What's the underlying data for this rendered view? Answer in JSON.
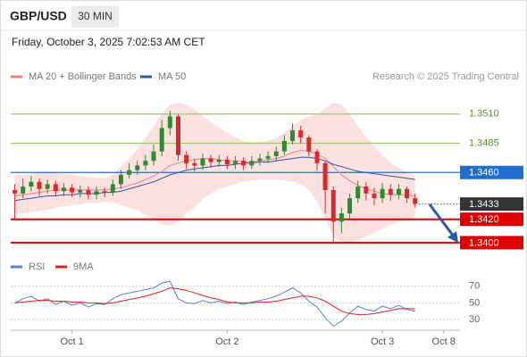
{
  "header": {
    "symbol": "GBP/USD",
    "interval": "30 MIN",
    "timestamp": "Friday, October 3, 2025 7:02:53 AM CET",
    "credit": "Research © 2025 Trading Central"
  },
  "chart_data": [
    {
      "type": "candlestick",
      "up_color": "#2e8b2e",
      "down_color": "#d62b2b",
      "xlim": [
        -0.5,
        54.5
      ],
      "ylim": [
        1.339,
        1.3535
      ],
      "open": [
        1.3445,
        1.3442,
        1.3448,
        1.3452,
        1.3446,
        1.345,
        1.3444,
        1.3447,
        1.3443,
        1.3445,
        1.3441,
        1.3444,
        1.3443,
        1.345,
        1.3458,
        1.3462,
        1.3466,
        1.347,
        1.3478,
        1.3498,
        1.3508,
        1.3475,
        1.3468,
        1.3466,
        1.3472,
        1.3469,
        1.3471,
        1.3467,
        1.347,
        1.3466,
        1.347,
        1.3472,
        1.3474,
        1.3478,
        1.3487,
        1.3496,
        1.349,
        1.3478,
        1.3468,
        1.3445,
        1.3418,
        1.3425,
        1.3438,
        1.3448,
        1.3442,
        1.3438,
        1.3446,
        1.3441,
        1.3446,
        1.3438
      ],
      "high": [
        1.345,
        1.3455,
        1.3457,
        1.3455,
        1.3454,
        1.3453,
        1.3451,
        1.345,
        1.3449,
        1.3448,
        1.3448,
        1.3447,
        1.3454,
        1.3462,
        1.3468,
        1.347,
        1.3475,
        1.3484,
        1.3505,
        1.3513,
        1.351,
        1.3478,
        1.3472,
        1.3476,
        1.3475,
        1.3475,
        1.3474,
        1.3474,
        1.3473,
        1.3474,
        1.3476,
        1.3478,
        1.3482,
        1.3492,
        1.3502,
        1.35,
        1.3492,
        1.348,
        1.347,
        1.3448,
        1.343,
        1.3442,
        1.3453,
        1.3452,
        1.3447,
        1.3451,
        1.345,
        1.345,
        1.3448,
        1.3442
      ],
      "low": [
        1.342,
        1.3438,
        1.3444,
        1.344,
        1.3442,
        1.344,
        1.344,
        1.3439,
        1.3439,
        1.3437,
        1.3437,
        1.3439,
        1.344,
        1.3446,
        1.3455,
        1.3458,
        1.3462,
        1.3466,
        1.3474,
        1.3492,
        1.347,
        1.3463,
        1.3461,
        1.3462,
        1.3464,
        1.3465,
        1.3463,
        1.3463,
        1.3462,
        1.3463,
        1.3466,
        1.3468,
        1.347,
        1.3475,
        1.3484,
        1.3485,
        1.3474,
        1.3462,
        1.3425,
        1.34,
        1.3408,
        1.342,
        1.3434,
        1.3436,
        1.3432,
        1.3434,
        1.3436,
        1.3437,
        1.3434,
        1.343
      ],
      "close": [
        1.3442,
        1.3448,
        1.3452,
        1.3446,
        1.345,
        1.3444,
        1.3447,
        1.3443,
        1.3445,
        1.3441,
        1.3444,
        1.3443,
        1.345,
        1.3458,
        1.3462,
        1.3466,
        1.347,
        1.3478,
        1.3498,
        1.3508,
        1.3475,
        1.3468,
        1.3466,
        1.3472,
        1.3469,
        1.3471,
        1.3467,
        1.347,
        1.3466,
        1.347,
        1.3472,
        1.3474,
        1.3478,
        1.3487,
        1.3496,
        1.349,
        1.3478,
        1.3468,
        1.3445,
        1.3418,
        1.3425,
        1.3438,
        1.3448,
        1.3442,
        1.3438,
        1.3446,
        1.3441,
        1.3446,
        1.3438,
        1.3433
      ],
      "indicators": [
        {
          "name": "MA 20 + Bollinger Bands",
          "color": "#f08080",
          "band_color": "#fde0e0",
          "values": [
            1.344,
            1.3441,
            1.3442,
            1.3443,
            1.3444,
            1.3445,
            1.3445,
            1.3445,
            1.3445,
            1.3445,
            1.3445,
            1.3445,
            1.3446,
            1.3447,
            1.3449,
            1.3451,
            1.3454,
            1.3457,
            1.3461,
            1.3466,
            1.3468,
            1.347,
            1.3471,
            1.3472,
            1.3472,
            1.3471,
            1.347,
            1.347,
            1.3469,
            1.3469,
            1.347,
            1.3471,
            1.3472,
            1.3474,
            1.3477,
            1.3479,
            1.3478,
            1.3476,
            1.3472,
            1.3465,
            1.3458,
            1.3453,
            1.3449,
            1.3446,
            1.3444,
            1.3442,
            1.3441,
            1.3441,
            1.3441,
            1.344
          ],
          "upper": [
            1.3458,
            1.3458,
            1.3459,
            1.346,
            1.346,
            1.346,
            1.3459,
            1.3458,
            1.3457,
            1.3456,
            1.3456,
            1.3455,
            1.3458,
            1.3465,
            1.3472,
            1.348,
            1.349,
            1.35,
            1.351,
            1.3518,
            1.352,
            1.3518,
            1.3514,
            1.3508,
            1.3503,
            1.3498,
            1.3494,
            1.349,
            1.3487,
            1.3486,
            1.3486,
            1.3487,
            1.3489,
            1.3494,
            1.35,
            1.3505,
            1.3508,
            1.351,
            1.3515,
            1.352,
            1.3518,
            1.351,
            1.35,
            1.349,
            1.3482,
            1.3475,
            1.3468,
            1.3464,
            1.346,
            1.3458
          ],
          "lower": [
            1.3425,
            1.3425,
            1.3426,
            1.3427,
            1.3428,
            1.343,
            1.3431,
            1.3432,
            1.3433,
            1.3434,
            1.3434,
            1.3435,
            1.3434,
            1.3432,
            1.343,
            1.3428,
            1.3424,
            1.342,
            1.3415,
            1.3415,
            1.3418,
            1.3425,
            1.343,
            1.3437,
            1.3442,
            1.3446,
            1.3448,
            1.345,
            1.3452,
            1.3453,
            1.3454,
            1.3454,
            1.3454,
            1.3453,
            1.3452,
            1.345,
            1.3445,
            1.3435,
            1.342,
            1.3405,
            1.34,
            1.34,
            1.3402,
            1.3405,
            1.3408,
            1.3412,
            1.3415,
            1.3418,
            1.342,
            1.3422
          ]
        },
        {
          "name": "MA 50",
          "color": "#2c5aa0",
          "values": [
            1.3436,
            1.3437,
            1.3438,
            1.3439,
            1.344,
            1.344,
            1.3441,
            1.3441,
            1.3442,
            1.3442,
            1.3442,
            1.3443,
            1.3443,
            1.3444,
            1.3446,
            1.3448,
            1.345,
            1.3452,
            1.3455,
            1.3458,
            1.346,
            1.3462,
            1.3463,
            1.3464,
            1.3465,
            1.3466,
            1.3466,
            1.3467,
            1.3468,
            1.3468,
            1.3469,
            1.3469,
            1.347,
            1.3471,
            1.3472,
            1.3473,
            1.3473,
            1.3472,
            1.347,
            1.3467,
            1.3465,
            1.3463,
            1.3461,
            1.346,
            1.3459,
            1.3458,
            1.3457,
            1.3456,
            1.3455,
            1.3454
          ]
        }
      ],
      "levels": [
        {
          "value": 1.351,
          "label": "1.3510",
          "color": "#9acd6a",
          "style": "text"
        },
        {
          "value": 1.3485,
          "label": "1.3485",
          "color": "#9acd6a",
          "style": "text"
        },
        {
          "value": 1.346,
          "label": "1.3460",
          "color": "#1f6fd1",
          "style": "box"
        },
        {
          "value": 1.342,
          "label": "1.3420",
          "color": "#e00000",
          "style": "box"
        },
        {
          "value": 1.34,
          "label": "1.3400",
          "color": "#e00000",
          "style": "box"
        }
      ],
      "last_price": {
        "value": 1.3433,
        "label": "1.3433",
        "color": "#333333"
      }
    },
    {
      "type": "line",
      "xlim": [
        -0.5,
        54.5
      ],
      "ylim": [
        17,
        87
      ],
      "yticks": [
        30,
        50,
        70
      ],
      "grid": true,
      "xticks": [
        {
          "value": 7,
          "label": "Oct 1"
        },
        {
          "value": 26,
          "label": "Oct 2"
        },
        {
          "value": 45,
          "label": "Oct 3"
        },
        {
          "value": 52.5,
          "label": "Oct 8"
        }
      ],
      "series": [
        {
          "name": "RSI",
          "color": "#5b7fd6",
          "values": [
            50,
            55,
            58,
            52,
            55,
            48,
            52,
            47,
            50,
            45,
            49,
            48,
            55,
            60,
            62,
            64,
            66,
            68,
            74,
            76,
            55,
            50,
            49,
            53,
            50,
            52,
            49,
            51,
            48,
            51,
            53,
            55,
            58,
            63,
            68,
            62,
            52,
            45,
            32,
            22,
            28,
            38,
            46,
            42,
            40,
            46,
            43,
            47,
            42,
            40
          ]
        },
        {
          "name": "9MA",
          "color": "#e02020",
          "values": [
            50,
            51,
            52,
            53,
            53,
            52,
            52,
            51,
            51,
            50,
            50,
            49,
            50,
            52,
            54,
            56,
            58,
            61,
            64,
            68,
            67,
            65,
            62,
            59,
            56,
            54,
            51,
            50,
            50,
            50,
            51,
            51,
            52,
            54,
            56,
            58,
            58,
            56,
            52,
            46,
            40,
            37,
            36,
            36,
            37,
            39,
            41,
            43,
            43,
            43
          ]
        }
      ]
    }
  ]
}
